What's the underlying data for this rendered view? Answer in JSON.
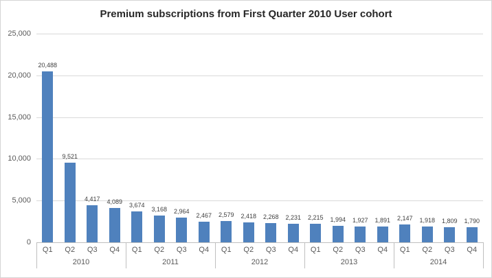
{
  "chart_data": {
    "type": "bar",
    "title": "Premium subscriptions from First Quarter 2010 User cohort",
    "xlabel": "",
    "ylabel": "",
    "ylim": [
      0,
      25000
    ],
    "grid": true,
    "legend": false,
    "bar_color": "#4f81bd",
    "y_ticks": [
      "25,000",
      "20,000",
      "15,000",
      "10,000",
      "5,000",
      "0"
    ],
    "y_tick_values": [
      25000,
      20000,
      15000,
      10000,
      5000,
      0
    ],
    "quarter_labels": [
      "Q1",
      "Q2",
      "Q3",
      "Q4"
    ],
    "group_labels": [
      "2010",
      "2011",
      "2012",
      "2013",
      "2014"
    ],
    "values": [
      [
        20488,
        9521,
        4417,
        4089
      ],
      [
        3674,
        3168,
        2964,
        2467
      ],
      [
        2579,
        2418,
        2268,
        2231
      ],
      [
        2215,
        1994,
        1927,
        1891
      ],
      [
        2147,
        1918,
        1809,
        1790
      ]
    ],
    "data_labels": [
      [
        "20,488",
        "9,521",
        "4,417",
        "4,089"
      ],
      [
        "3,674",
        "3,168",
        "2,964",
        "2,467"
      ],
      [
        "2,579",
        "2,418",
        "2,268",
        "2,231"
      ],
      [
        "2,215",
        "1,994",
        "1,927",
        "1,891"
      ],
      [
        "2,147",
        "1,918",
        "1,809",
        "1,790"
      ]
    ]
  }
}
